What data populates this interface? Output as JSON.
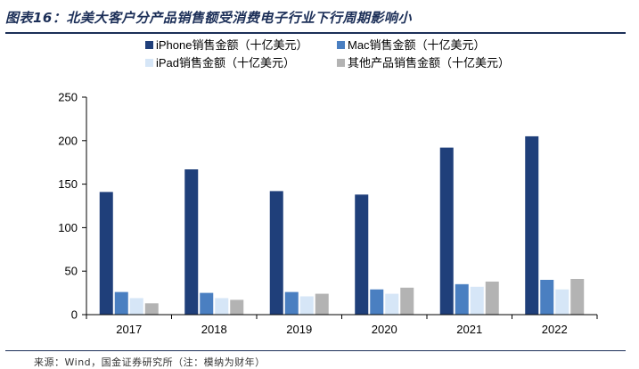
{
  "figure_title": "图表16：北美大客户分产品销售额受消费电子行业下行周期影响小",
  "source_note": "来源：Wind，国金证券研究所（注：模纳为财年）",
  "colors": {
    "title": "#1c2f58",
    "series": [
      "#1f3f7a",
      "#4a7fc1",
      "#d6e6f7",
      "#b3b3b3"
    ]
  },
  "chart_data": {
    "type": "bar",
    "title": "",
    "xlabel": "",
    "ylabel": "",
    "categories": [
      "2017",
      "2018",
      "2019",
      "2020",
      "2021",
      "2022"
    ],
    "series": [
      {
        "name": "iPhone销售金额（十亿美元）",
        "values": [
          141,
          167,
          142,
          138,
          192,
          205
        ]
      },
      {
        "name": "Mac销售金额（十亿美元）",
        "values": [
          26,
          25,
          26,
          29,
          35,
          40
        ]
      },
      {
        "name": "iPad销售金额（十亿美元）",
        "values": [
          19,
          19,
          21,
          24,
          32,
          29
        ]
      },
      {
        "name": "其他产品销售金额（十亿美元）",
        "values": [
          13,
          17,
          24,
          31,
          38,
          41
        ]
      }
    ],
    "ylim": [
      0,
      250
    ],
    "yticks": [
      0,
      50,
      100,
      150,
      200,
      250
    ],
    "legend_position": "top",
    "grid": false
  }
}
